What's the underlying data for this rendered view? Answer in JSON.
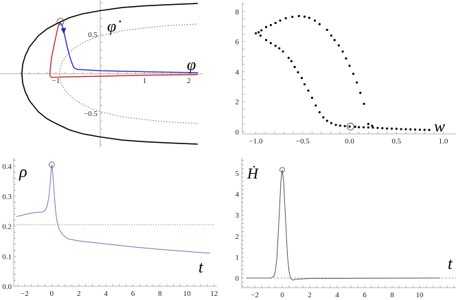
{
  "chart_data": [
    {
      "type": "line",
      "xlabel": "φ",
      "ylabel": "φ̇",
      "xticks": [
        {
          "v": -1,
          "label": "−1"
        },
        {
          "v": 1,
          "label": "1"
        },
        {
          "v": 2,
          "label": "2"
        }
      ],
      "yticks": [
        {
          "v": 0.5,
          "label": "0.5"
        },
        {
          "v": -0.5,
          "label": "−0.5"
        }
      ],
      "boundary_outer": {
        "symmetric": true,
        "color": "#000000",
        "points": [
          [
            -1.77,
            0
          ],
          [
            -1.75,
            0.12
          ],
          [
            -1.7,
            0.22
          ],
          [
            -1.6,
            0.34
          ],
          [
            -1.4,
            0.48
          ],
          [
            -1.2,
            0.57
          ],
          [
            -1.0,
            0.63
          ],
          [
            -0.7,
            0.71
          ],
          [
            -0.4,
            0.76
          ],
          [
            0,
            0.8
          ],
          [
            0.5,
            0.84
          ],
          [
            1,
            0.86
          ],
          [
            1.5,
            0.875
          ],
          [
            2.2,
            0.89
          ]
        ]
      },
      "boundary_inner": {
        "symmetric": true,
        "color": "#999999",
        "dashed": true,
        "points": [
          [
            -0.92,
            0
          ],
          [
            -0.9,
            0.085
          ],
          [
            -0.85,
            0.16
          ],
          [
            -0.75,
            0.24
          ],
          [
            -0.6,
            0.32
          ],
          [
            -0.4,
            0.39
          ],
          [
            -0.2,
            0.44
          ],
          [
            0,
            0.48
          ],
          [
            0.5,
            0.546
          ],
          [
            1,
            0.58
          ],
          [
            1.5,
            0.61
          ],
          [
            2.2,
            0.63
          ]
        ]
      },
      "series": [
        {
          "color": "#cc2222",
          "points": [
            [
              2.2,
              -0.01
            ],
            [
              1,
              -0.018
            ],
            [
              0,
              -0.03
            ],
            [
              -0.8,
              -0.04
            ],
            [
              -1.1,
              -0.045
            ],
            [
              -1.14,
              -0.02
            ],
            [
              -1.13,
              0.05
            ],
            [
              -1.1,
              0.2
            ],
            [
              -1.03,
              0.4
            ],
            [
              -0.96,
              0.58
            ],
            [
              -0.92,
              0.64
            ]
          ]
        },
        {
          "color": "#2222cc",
          "points": [
            [
              -0.92,
              0.64
            ],
            [
              -0.87,
              0.63
            ],
            [
              -0.82,
              0.53
            ],
            [
              -0.75,
              0.35
            ],
            [
              -0.67,
              0.18
            ],
            [
              -0.6,
              0.08
            ],
            [
              -0.52,
              0.055
            ],
            [
              0,
              0.04
            ],
            [
              1,
              0.025
            ],
            [
              2.2,
              0.015
            ]
          ]
        }
      ],
      "marker": [
        -0.9,
        0.66
      ]
    },
    {
      "type": "scatter",
      "xlabel": "w",
      "xlim": [
        -1.0,
        1.0
      ],
      "ylim": [
        0,
        8
      ],
      "xticks": [
        {
          "v": -1,
          "label": "−1.0"
        },
        {
          "v": -0.5,
          "label": "−0.5"
        },
        {
          "v": 0,
          "label": "0.0"
        },
        {
          "v": 0.5,
          "label": "0.5"
        },
        {
          "v": 1,
          "label": "1.0"
        }
      ],
      "yticks": [
        {
          "v": 0,
          "label": "0"
        },
        {
          "v": 2,
          "label": "2"
        },
        {
          "v": 4,
          "label": "4"
        },
        {
          "v": 6,
          "label": "6"
        },
        {
          "v": 8,
          "label": "8"
        }
      ],
      "points": [
        [
          -1,
          6.55
        ],
        [
          -0.97,
          6.62
        ],
        [
          -0.94,
          6.75
        ],
        [
          -0.89,
          6.97
        ],
        [
          -0.84,
          7.1
        ],
        [
          -0.79,
          7.24
        ],
        [
          -0.74,
          7.4
        ],
        [
          -0.68,
          7.55
        ],
        [
          -0.61,
          7.65
        ],
        [
          -0.54,
          7.7
        ],
        [
          -0.48,
          7.66
        ],
        [
          -0.43,
          7.58
        ],
        [
          -0.37,
          7.4
        ],
        [
          -0.32,
          7.16
        ],
        [
          -0.24,
          6.78
        ],
        [
          -0.195,
          6.4
        ],
        [
          -0.16,
          6.1
        ],
        [
          -0.115,
          5.75
        ],
        [
          -0.073,
          5.34
        ],
        [
          -0.037,
          4.88
        ],
        [
          0.0,
          4.39
        ],
        [
          0.04,
          3.86
        ],
        [
          0.078,
          3.28
        ],
        [
          0.115,
          2.59
        ],
        [
          0.154,
          1.86
        ],
        [
          -0.95,
          6.4
        ],
        [
          -0.89,
          6.1
        ],
        [
          -0.84,
          5.9
        ],
        [
          -0.79,
          5.72
        ],
        [
          -0.75,
          5.55
        ],
        [
          -0.71,
          5.34
        ],
        [
          -0.65,
          4.92
        ],
        [
          -0.62,
          4.7
        ],
        [
          -0.585,
          4.31
        ],
        [
          -0.55,
          3.96
        ],
        [
          -0.51,
          3.58
        ],
        [
          -0.48,
          3.16
        ],
        [
          -0.44,
          2.74
        ],
        [
          -0.4,
          2.26
        ],
        [
          -0.36,
          1.75
        ],
        [
          -0.32,
          1.3
        ],
        [
          -0.28,
          0.96
        ],
        [
          -0.24,
          0.73
        ],
        [
          -0.195,
          0.58
        ],
        [
          -0.146,
          0.46
        ],
        [
          -0.1,
          0.41
        ],
        [
          -0.05,
          0.38
        ],
        [
          0,
          0.35
        ],
        [
          0.06,
          0.33
        ],
        [
          0.1,
          0.31
        ],
        [
          0.15,
          0.3
        ],
        [
          0.2,
          0.52
        ],
        [
          0.2,
          0.29
        ],
        [
          0.24,
          0.4
        ],
        [
          0.25,
          0.28
        ],
        [
          0.3,
          0.26
        ],
        [
          0.35,
          0.24
        ],
        [
          0.4,
          0.22
        ],
        [
          0.45,
          0.21
        ],
        [
          0.5,
          0.2
        ],
        [
          0.55,
          0.18
        ],
        [
          0.6,
          0.17
        ],
        [
          0.65,
          0.16
        ],
        [
          0.7,
          0.15
        ],
        [
          0.75,
          0.14
        ],
        [
          0.8,
          0.13
        ],
        [
          0.85,
          0.12
        ]
      ],
      "marker": [
        0.01,
        0.35
      ]
    },
    {
      "type": "line",
      "xlabel": "t",
      "ylabel": "ρ",
      "ylim": [
        0,
        0.4
      ],
      "xticks": [
        {
          "v": -2,
          "label": "−2"
        },
        {
          "v": 0,
          "label": "0"
        },
        {
          "v": 2,
          "label": "2"
        },
        {
          "v": 4,
          "label": "4"
        },
        {
          "v": 6,
          "label": "6"
        },
        {
          "v": 8,
          "label": "8"
        },
        {
          "v": 10,
          "label": "10"
        },
        {
          "v": 12,
          "label": "12"
        }
      ],
      "yticks": [
        {
          "v": 0,
          "label": "0.0"
        },
        {
          "v": 0.1,
          "label": "0.1"
        },
        {
          "v": 0.2,
          "label": "0.2"
        },
        {
          "v": 0.3,
          "label": "0.3"
        },
        {
          "v": 0.4,
          "label": "0.4"
        }
      ],
      "color": "#7b7bc4",
      "points": [
        [
          -2.6,
          0.232
        ],
        [
          -1.8,
          0.241
        ],
        [
          -1.2,
          0.246
        ],
        [
          -0.7,
          0.247
        ],
        [
          -0.5,
          0.252
        ],
        [
          -0.35,
          0.265
        ],
        [
          -0.2,
          0.3
        ],
        [
          -0.1,
          0.35
        ],
        [
          -0.03,
          0.39
        ],
        [
          0,
          0.405
        ],
        [
          0.05,
          0.39
        ],
        [
          0.12,
          0.35
        ],
        [
          0.2,
          0.3
        ],
        [
          0.3,
          0.245
        ],
        [
          0.4,
          0.215
        ],
        [
          0.55,
          0.19
        ],
        [
          0.8,
          0.172
        ],
        [
          1.2,
          0.158
        ],
        [
          2,
          0.151
        ],
        [
          4,
          0.141
        ],
        [
          6,
          0.131
        ],
        [
          8,
          0.123
        ],
        [
          10,
          0.116
        ],
        [
          11.7,
          0.11
        ]
      ],
      "reference_line": 0.205,
      "marker": [
        0,
        0.405
      ]
    },
    {
      "type": "line",
      "xlabel": "t",
      "ylabel": "Ḣ",
      "xticks": [
        {
          "v": -2,
          "label": "−2"
        },
        {
          "v": 0,
          "label": "0"
        },
        {
          "v": 2,
          "label": "2"
        },
        {
          "v": 4,
          "label": "4"
        },
        {
          "v": 6,
          "label": "6"
        },
        {
          "v": 8,
          "label": "8"
        },
        {
          "v": 10,
          "label": "10"
        }
      ],
      "yticks": [
        {
          "v": 0,
          "label": "0"
        },
        {
          "v": 1,
          "label": "1"
        },
        {
          "v": 2,
          "label": "2"
        },
        {
          "v": 3,
          "label": "3"
        },
        {
          "v": 4,
          "label": "4"
        },
        {
          "v": 5,
          "label": "5"
        }
      ],
      "color": "#555555",
      "points": [
        [
          -2.6,
          0
        ],
        [
          -0.8,
          0
        ],
        [
          -0.6,
          0.1
        ],
        [
          -0.5,
          0.35
        ],
        [
          -0.4,
          0.9
        ],
        [
          -0.3,
          2.0
        ],
        [
          -0.2,
          3.3
        ],
        [
          -0.1,
          4.6
        ],
        [
          0,
          5.15
        ],
        [
          0.1,
          4.6
        ],
        [
          0.2,
          3.3
        ],
        [
          0.3,
          2.0
        ],
        [
          0.4,
          0.9
        ],
        [
          0.5,
          0.3
        ],
        [
          0.6,
          0.0
        ],
        [
          0.75,
          -0.1
        ],
        [
          1,
          -0.06
        ],
        [
          2,
          -0.02
        ],
        [
          11.5,
          0
        ]
      ],
      "reference_line": 0,
      "marker": [
        0,
        5.15
      ]
    }
  ]
}
